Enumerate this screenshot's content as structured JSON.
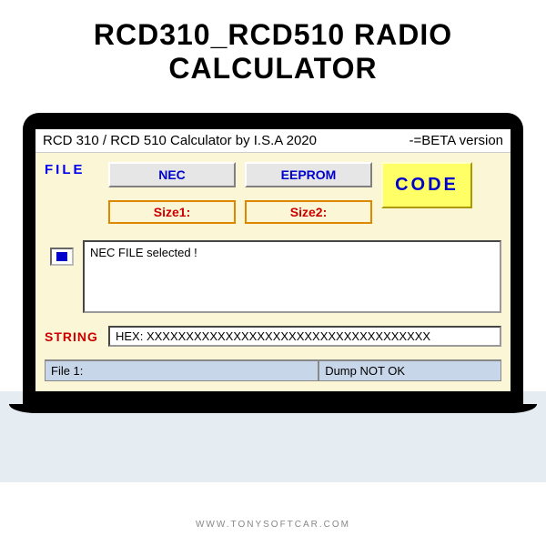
{
  "page": {
    "title": "RCD310_RCD510 RADIO CALCULATOR",
    "footer_url": "WWW.TONYSOFTCAR.COM"
  },
  "app": {
    "title_left": "RCD 310 / RCD 510 Calculator by I.S.A 2020",
    "title_right": "-=BETA version",
    "file_label": "FILE",
    "btn_nec": "NEC",
    "btn_eeprom": "EEPROM",
    "btn_code": "CODE",
    "size1_label": "Size1:",
    "size2_label": "Size2:",
    "textarea_content": "NEC FILE selected !",
    "string_label": "STRING",
    "hex_value": "HEX: XXXXXXXXXXXXXXXXXXXXXXXXXXXXXXXXXXXX",
    "status_file": "File 1:",
    "status_dump": "Dump NOT OK"
  },
  "colors": {
    "app_bg": "#fbf7d6",
    "btn_grey_bg": "#e6e6e6",
    "btn_blue_text": "#0000cc",
    "code_bg": "#ffff66",
    "size_border": "#dd8800",
    "red_text": "#cc0000",
    "status_bg": "#c7d6e8",
    "stripe_bg": "#e5ecf2"
  }
}
